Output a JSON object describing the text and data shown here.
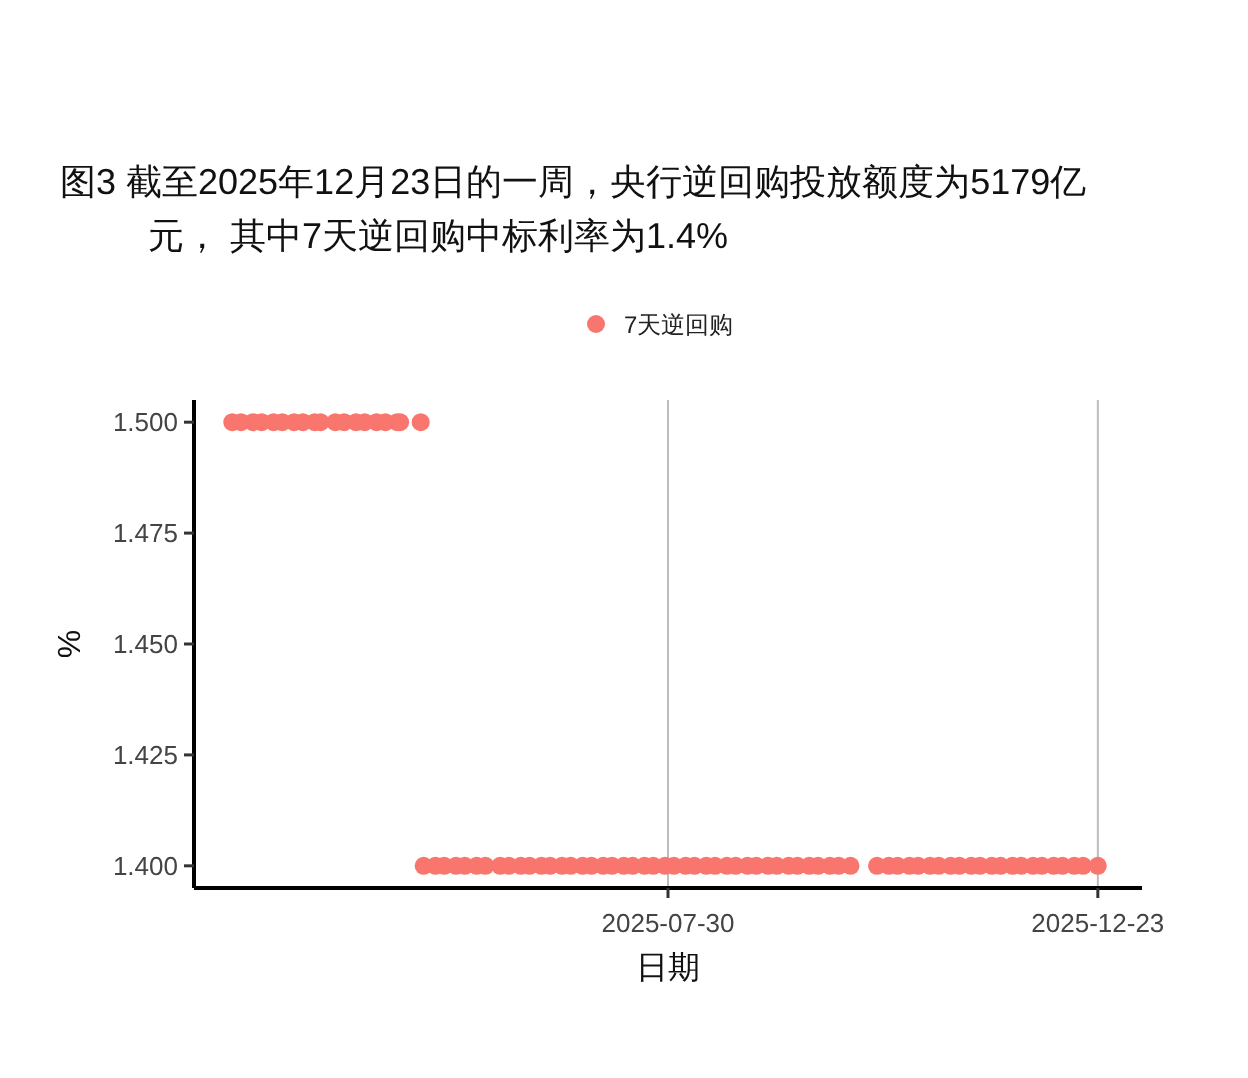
{
  "chart_data": {
    "type": "scatter",
    "title": "图3  截至2025年12月23日的一周，央行逆回购投放额度为5179亿元， 其中7天逆回购中标利率为1.4%",
    "xlabel": "日期",
    "ylabel": "%",
    "xlim": [
      "2025-02-19",
      "2026-01-07"
    ],
    "xticks": [
      "2025-07-30",
      "2025-12-23"
    ],
    "ylim": [
      1.395,
      1.505
    ],
    "yticks": [
      {
        "value": 1.4,
        "label": "1.400"
      },
      {
        "value": 1.425,
        "label": "1.425"
      },
      {
        "value": 1.45,
        "label": "1.450"
      },
      {
        "value": 1.475,
        "label": "1.475"
      },
      {
        "value": 1.5,
        "label": "1.500"
      }
    ],
    "grid": "x",
    "legend": "top",
    "marker": "circle",
    "series": [
      {
        "name": "7天逆回购",
        "color": "#f8766d",
        "x": [
          "2025-03-04",
          "2025-03-07",
          "2025-03-11",
          "2025-03-14",
          "2025-03-18",
          "2025-03-21",
          "2025-03-25",
          "2025-03-28",
          "2025-04-01",
          "2025-04-03",
          "2025-04-08",
          "2025-04-11",
          "2025-04-15",
          "2025-04-18",
          "2025-04-22",
          "2025-04-25",
          "2025-04-29",
          "2025-04-30",
          "2025-05-07",
          "2025-05-08",
          "2025-05-12",
          "2025-05-15",
          "2025-05-19",
          "2025-05-22",
          "2025-05-26",
          "2025-05-29",
          "2025-06-03",
          "2025-06-06",
          "2025-06-10",
          "2025-06-13",
          "2025-06-17",
          "2025-06-20",
          "2025-06-24",
          "2025-06-27",
          "2025-07-01",
          "2025-07-04",
          "2025-07-08",
          "2025-07-11",
          "2025-07-15",
          "2025-07-18",
          "2025-07-22",
          "2025-07-25",
          "2025-07-29",
          "2025-08-01",
          "2025-08-05",
          "2025-08-08",
          "2025-08-12",
          "2025-08-15",
          "2025-08-19",
          "2025-08-22",
          "2025-08-26",
          "2025-08-29",
          "2025-09-02",
          "2025-09-05",
          "2025-09-09",
          "2025-09-12",
          "2025-09-16",
          "2025-09-19",
          "2025-09-23",
          "2025-09-26",
          "2025-09-30",
          "2025-10-09",
          "2025-10-13",
          "2025-10-16",
          "2025-10-20",
          "2025-10-23",
          "2025-10-27",
          "2025-10-30",
          "2025-11-03",
          "2025-11-06",
          "2025-11-10",
          "2025-11-13",
          "2025-11-17",
          "2025-11-20",
          "2025-11-24",
          "2025-11-27",
          "2025-12-01",
          "2025-12-04",
          "2025-12-08",
          "2025-12-11",
          "2025-12-15",
          "2025-12-18",
          "2025-12-23"
        ],
        "values": [
          1.5,
          1.5,
          1.5,
          1.5,
          1.5,
          1.5,
          1.5,
          1.5,
          1.5,
          1.5,
          1.5,
          1.5,
          1.5,
          1.5,
          1.5,
          1.5,
          1.5,
          1.5,
          1.5,
          1.4,
          1.4,
          1.4,
          1.4,
          1.4,
          1.4,
          1.4,
          1.4,
          1.4,
          1.4,
          1.4,
          1.4,
          1.4,
          1.4,
          1.4,
          1.4,
          1.4,
          1.4,
          1.4,
          1.4,
          1.4,
          1.4,
          1.4,
          1.4,
          1.4,
          1.4,
          1.4,
          1.4,
          1.4,
          1.4,
          1.4,
          1.4,
          1.4,
          1.4,
          1.4,
          1.4,
          1.4,
          1.4,
          1.4,
          1.4,
          1.4,
          1.4,
          1.4,
          1.4,
          1.4,
          1.4,
          1.4,
          1.4,
          1.4,
          1.4,
          1.4,
          1.4,
          1.4,
          1.4,
          1.4,
          1.4,
          1.4,
          1.4,
          1.4,
          1.4,
          1.4,
          1.4,
          1.4,
          1.4
        ]
      }
    ]
  }
}
